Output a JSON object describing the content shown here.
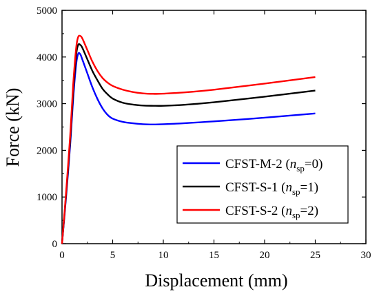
{
  "chart_data": {
    "type": "line",
    "xlabel": "Displacement (mm)",
    "ylabel": "Force (kN)",
    "xlim": [
      0,
      30
    ],
    "ylim": [
      0,
      5000
    ],
    "x_ticks": [
      0,
      5,
      10,
      15,
      20,
      25,
      30
    ],
    "y_ticks": [
      0,
      1000,
      2000,
      3000,
      4000,
      5000
    ],
    "grid": false,
    "legend_position": "bottom-right",
    "series": [
      {
        "name": "CFST-M-2 (nsp=0)",
        "legend": {
          "prefix": "CFST-M-2 (",
          "var": "n",
          "sub": "sp",
          "suffix": "=0)"
        },
        "color": "#0000ff",
        "points": [
          [
            0,
            0
          ],
          [
            0.4,
            1000
          ],
          [
            0.8,
            2100
          ],
          [
            1.1,
            3100
          ],
          [
            1.4,
            3850
          ],
          [
            1.6,
            4070
          ],
          [
            1.8,
            4060
          ],
          [
            2.0,
            3950
          ],
          [
            2.5,
            3650
          ],
          [
            3.0,
            3350
          ],
          [
            3.5,
            3100
          ],
          [
            4.0,
            2900
          ],
          [
            4.5,
            2760
          ],
          [
            5.0,
            2680
          ],
          [
            6.0,
            2610
          ],
          [
            7.0,
            2580
          ],
          [
            8.0,
            2560
          ],
          [
            9.0,
            2555
          ],
          [
            10.0,
            2560
          ],
          [
            12.0,
            2580
          ],
          [
            15.0,
            2620
          ],
          [
            20.0,
            2700
          ],
          [
            25.0,
            2790
          ]
        ]
      },
      {
        "name": "CFST-S-1 (nsp=1)",
        "legend": {
          "prefix": "CFST-S-1   (",
          "var": "n",
          "sub": "sp",
          "suffix": "=1)"
        },
        "color": "#000000",
        "points": [
          [
            0,
            0
          ],
          [
            0.4,
            1050
          ],
          [
            0.8,
            2200
          ],
          [
            1.1,
            3250
          ],
          [
            1.4,
            4050
          ],
          [
            1.6,
            4260
          ],
          [
            1.8,
            4260
          ],
          [
            2.0,
            4200
          ],
          [
            2.5,
            3950
          ],
          [
            3.0,
            3700
          ],
          [
            3.5,
            3500
          ],
          [
            4.0,
            3320
          ],
          [
            4.5,
            3200
          ],
          [
            5.0,
            3110
          ],
          [
            6.0,
            3020
          ],
          [
            7.0,
            2980
          ],
          [
            8.0,
            2960
          ],
          [
            9.0,
            2955
          ],
          [
            10.0,
            2955
          ],
          [
            12.0,
            2975
          ],
          [
            15.0,
            3030
          ],
          [
            20.0,
            3150
          ],
          [
            25.0,
            3280
          ]
        ]
      },
      {
        "name": "CFST-S-2 (nsp=2)",
        "legend": {
          "prefix": "CFST-S-2   (",
          "var": "n",
          "sub": "sp",
          "suffix": "=2)"
        },
        "color": "#ff0000",
        "points": [
          [
            0,
            0
          ],
          [
            0.4,
            1100
          ],
          [
            0.8,
            2300
          ],
          [
            1.1,
            3400
          ],
          [
            1.4,
            4200
          ],
          [
            1.6,
            4430
          ],
          [
            1.8,
            4450
          ],
          [
            2.0,
            4400
          ],
          [
            2.5,
            4150
          ],
          [
            3.0,
            3900
          ],
          [
            3.5,
            3700
          ],
          [
            4.0,
            3550
          ],
          [
            4.5,
            3450
          ],
          [
            5.0,
            3380
          ],
          [
            6.0,
            3300
          ],
          [
            7.0,
            3250
          ],
          [
            8.0,
            3220
          ],
          [
            9.0,
            3210
          ],
          [
            10.0,
            3215
          ],
          [
            12.0,
            3240
          ],
          [
            15.0,
            3300
          ],
          [
            20.0,
            3430
          ],
          [
            25.0,
            3570
          ]
        ]
      }
    ]
  }
}
